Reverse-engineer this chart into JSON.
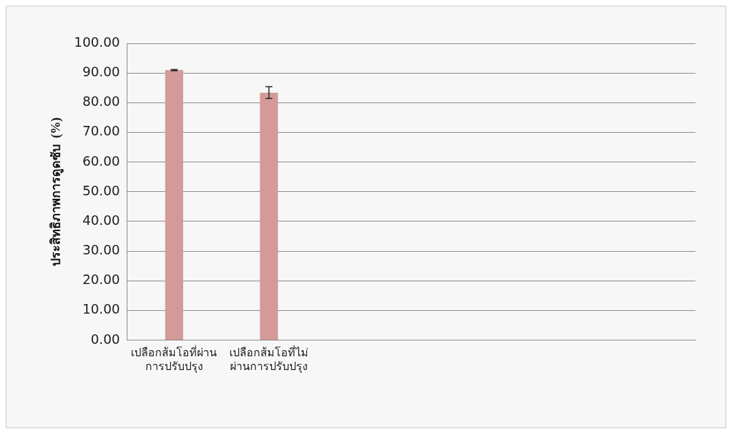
{
  "chart_data": {
    "type": "bar",
    "ylabel": "ประสิทธิภาพการดูดซับ  (%)",
    "categories": [
      "เปลือกส้มโอที่ผ่านการปรับปรุง",
      "เปลือกส้มโอที่ไม่ผ่านการปรับปรุง",
      null,
      null,
      null,
      null
    ],
    "values": [
      91,
      83.4,
      null,
      null,
      null,
      null
    ],
    "errors": [
      0.2,
      2,
      null,
      null,
      null,
      null
    ],
    "color": "#d49a9a",
    "ylim": [
      0,
      100
    ],
    "yticks": [
      {
        "value": 0,
        "label": "0.00"
      },
      {
        "value": 10,
        "label": "10.00"
      },
      {
        "value": 20,
        "label": "20.00"
      },
      {
        "value": 30,
        "label": "30.00"
      },
      {
        "value": 40,
        "label": "40.00"
      },
      {
        "value": 50,
        "label": "50.00"
      },
      {
        "value": 60,
        "label": "60.00"
      },
      {
        "value": 70,
        "label": "70.00"
      },
      {
        "value": 80,
        "label": "80.00"
      },
      {
        "value": 90,
        "label": "90.00"
      },
      {
        "value": 100,
        "label": "100.00"
      }
    ],
    "grid": "y",
    "legend": false
  }
}
